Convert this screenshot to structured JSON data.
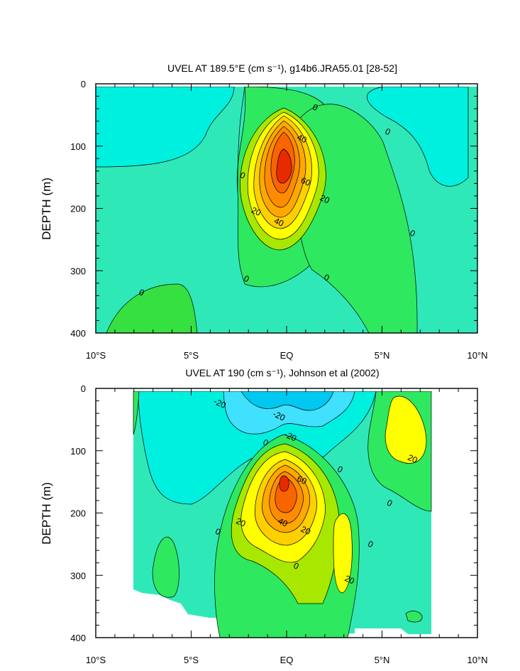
{
  "chart_data": [
    {
      "type": "contour",
      "title": "UVEL AT 189.5°E (cm s⁻¹), g14b6.JRA55.01 [28-52]",
      "ylabel": "DEPTH (m)",
      "xlabel": "",
      "x_ticklabels": [
        "10°S",
        "5°S",
        "EQ",
        "5°N",
        "10°N"
      ],
      "x_tickvalues": [
        -10,
        -5,
        0,
        5,
        10
      ],
      "y_ticklabels": [
        "0",
        "100",
        "200",
        "300",
        "400"
      ],
      "y_tickvalues": [
        0,
        100,
        200,
        300,
        400
      ],
      "xlim": [
        -10,
        10
      ],
      "ylim": [
        400,
        0
      ],
      "contour_interval": 10,
      "contour_labels": [
        {
          "text": "0",
          "x": 1.5,
          "y": 38
        },
        {
          "text": "0",
          "x": 5.3,
          "y": 77
        },
        {
          "text": "40",
          "x": 0.8,
          "y": 88
        },
        {
          "text": "0",
          "x": -2.3,
          "y": 147
        },
        {
          "text": "60",
          "x": 1.0,
          "y": 157
        },
        {
          "text": "20",
          "x": 2.0,
          "y": 185
        },
        {
          "text": "20",
          "x": -1.6,
          "y": 205
        },
        {
          "text": "40",
          "x": -0.4,
          "y": 222
        },
        {
          "text": "0",
          "x": 6.6,
          "y": 240
        },
        {
          "text": "0",
          "x": -2.1,
          "y": 313
        },
        {
          "text": "0",
          "x": 2.1,
          "y": 311
        },
        {
          "text": "0",
          "x": -7.6,
          "y": 335
        }
      ]
    },
    {
      "type": "contour",
      "title": "UVEL AT 190 (cm s⁻¹), Johnson et al (2002)",
      "ylabel": "DEPTH (m)",
      "xlabel": "",
      "x_ticklabels": [
        "10°S",
        "5°S",
        "EQ",
        "5°N",
        "10°N"
      ],
      "x_tickvalues": [
        -10,
        -5,
        0,
        5,
        10
      ],
      "y_ticklabels": [
        "0",
        "100",
        "200",
        "300",
        "400"
      ],
      "y_tickvalues": [
        0,
        100,
        200,
        300,
        400
      ],
      "xlim": [
        -10,
        10
      ],
      "ylim": [
        400,
        0
      ],
      "contour_interval": 10,
      "contour_labels": [
        {
          "text": "-20",
          "x": -3.5,
          "y": 24
        },
        {
          "text": "-20",
          "x": -0.4,
          "y": 44
        },
        {
          "text": "-20",
          "x": 0.2,
          "y": 77
        },
        {
          "text": "0",
          "x": -1.1,
          "y": 87
        },
        {
          "text": "0",
          "x": 2.8,
          "y": 130
        },
        {
          "text": "20",
          "x": 6.6,
          "y": 113
        },
        {
          "text": "60",
          "x": 0.8,
          "y": 147
        },
        {
          "text": "0",
          "x": 5.4,
          "y": 184
        },
        {
          "text": "40",
          "x": -0.2,
          "y": 215
        },
        {
          "text": "20",
          "x": -2.4,
          "y": 215
        },
        {
          "text": "20",
          "x": 1.0,
          "y": 228
        },
        {
          "text": "0",
          "x": -3.6,
          "y": 230
        },
        {
          "text": "0",
          "x": 4.4,
          "y": 250
        },
        {
          "text": "0",
          "x": 0.5,
          "y": 285
        },
        {
          "text": "20",
          "x": 3.3,
          "y": 307
        }
      ]
    }
  ]
}
